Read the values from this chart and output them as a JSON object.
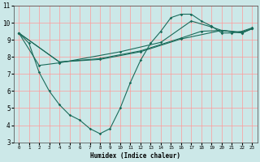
{
  "title": "",
  "xlabel": "Humidex (Indice chaleur)",
  "bg_color": "#cce8e8",
  "grid_color": "#ff9999",
  "line_color": "#1a6b5a",
  "xlim": [
    -0.5,
    23.5
  ],
  "ylim": [
    3,
    11
  ],
  "xticks": [
    0,
    1,
    2,
    3,
    4,
    5,
    6,
    7,
    8,
    9,
    10,
    11,
    12,
    13,
    14,
    15,
    16,
    17,
    18,
    19,
    20,
    21,
    22,
    23
  ],
  "yticks": [
    3,
    4,
    5,
    6,
    7,
    8,
    9,
    10,
    11
  ],
  "series1_x": [
    0,
    1,
    2,
    3,
    4,
    5,
    6,
    7,
    8,
    9,
    10,
    11,
    12,
    13,
    14,
    15,
    16,
    17,
    18,
    19,
    20,
    21,
    22,
    23
  ],
  "series1_y": [
    9.4,
    8.8,
    7.1,
    6.0,
    5.2,
    4.6,
    4.3,
    3.8,
    3.5,
    3.8,
    5.0,
    6.5,
    7.8,
    8.8,
    9.5,
    10.3,
    10.5,
    10.5,
    10.1,
    9.8,
    9.4,
    9.4,
    9.5,
    9.7
  ],
  "series2_x": [
    0,
    2,
    4,
    10,
    14,
    17,
    19,
    20,
    22,
    23
  ],
  "series2_y": [
    9.4,
    7.5,
    7.65,
    8.3,
    8.85,
    10.1,
    9.75,
    9.55,
    9.45,
    9.65
  ],
  "series3_x": [
    0,
    4,
    8,
    12,
    16,
    18,
    20,
    22,
    23
  ],
  "series3_y": [
    9.4,
    7.7,
    7.9,
    8.35,
    9.1,
    9.5,
    9.55,
    9.4,
    9.65
  ],
  "series4_x": [
    0,
    4,
    8,
    12,
    16,
    20,
    22,
    23
  ],
  "series4_y": [
    9.4,
    7.7,
    7.85,
    8.3,
    9.05,
    9.55,
    9.4,
    9.65
  ]
}
